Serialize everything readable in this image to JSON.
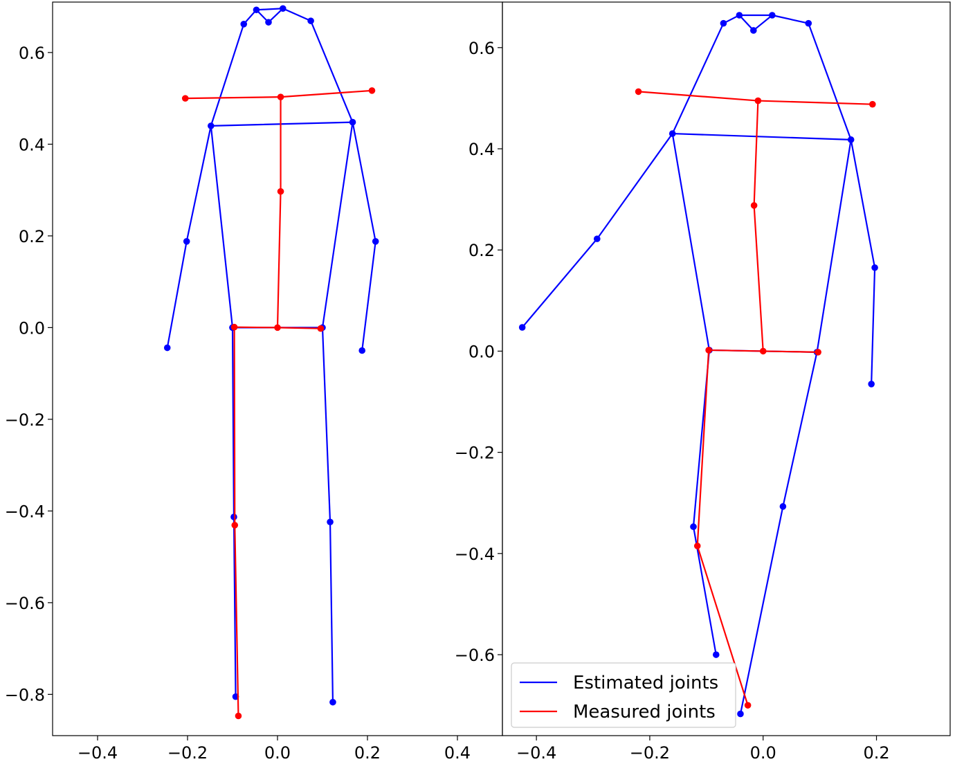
{
  "chart_data": [
    {
      "type": "line",
      "xlim": [
        -0.5,
        0.5
      ],
      "ylim": [
        -0.89,
        0.71
      ],
      "xticks": [
        -0.4,
        -0.2,
        0.0,
        0.2,
        0.4
      ],
      "xtick_labels": [
        "−0.4",
        "−0.2",
        "0.0",
        "0.2",
        "0.4"
      ],
      "yticks": [
        -0.8,
        -0.6,
        -0.4,
        -0.2,
        0.0,
        0.2,
        0.4,
        0.6
      ],
      "ytick_labels": [
        "−0.8",
        "−0.6",
        "−0.4",
        "−0.2",
        "0.0",
        "0.2",
        "0.4",
        "0.6"
      ],
      "grid": false,
      "series": [
        {
          "name": "Estimated joints",
          "color": "#0000ff",
          "points": {
            "pelvis": [
              -0.1,
              0.0
            ],
            "rhip": [
              -0.1,
              0.0
            ],
            "rknee": [
              -0.097,
              -0.413
            ],
            "rankle": [
              -0.093,
              -0.805
            ],
            "lhip": [
              0.1,
              0.0
            ],
            "lknee": [
              0.117,
              -0.424
            ],
            "lankle": [
              0.123,
              -0.817
            ],
            "rshoulder": [
              -0.148,
              0.44
            ],
            "relbow": [
              -0.202,
              0.188
            ],
            "rwrist": [
              -0.245,
              -0.044
            ],
            "lshoulder": [
              0.167,
              0.448
            ],
            "lelbow": [
              0.218,
              0.188
            ],
            "lwrist": [
              0.188,
              -0.05
            ],
            "rear": [
              -0.075,
              0.662
            ],
            "reye": [
              -0.047,
              0.693
            ],
            "nose": [
              -0.02,
              0.666
            ],
            "leye": [
              0.012,
              0.696
            ],
            "lear": [
              0.074,
              0.669
            ]
          },
          "segments": [
            [
              "rknee",
              "rankle"
            ],
            [
              "rhip",
              "rknee"
            ],
            [
              "rhip",
              "lhip"
            ],
            [
              "lhip",
              "lknee"
            ],
            [
              "lknee",
              "lankle"
            ],
            [
              "rhip",
              "rshoulder"
            ],
            [
              "lhip",
              "lshoulder"
            ],
            [
              "rshoulder",
              "lshoulder"
            ],
            [
              "rshoulder",
              "relbow"
            ],
            [
              "relbow",
              "rwrist"
            ],
            [
              "lshoulder",
              "lelbow"
            ],
            [
              "lelbow",
              "lwrist"
            ],
            [
              "rshoulder",
              "rear"
            ],
            [
              "rear",
              "reye"
            ],
            [
              "reye",
              "nose"
            ],
            [
              "nose",
              "leye"
            ],
            [
              "reye",
              "leye"
            ],
            [
              "leye",
              "lear"
            ],
            [
              "lear",
              "lshoulder"
            ]
          ]
        },
        {
          "name": "Measured joints",
          "color": "#ff0000",
          "points": {
            "pelvis": [
              0.0,
              0.0
            ],
            "rhip": [
              -0.096,
              0.001
            ],
            "rknee": [
              -0.095,
              -0.431
            ],
            "rankle": [
              -0.087,
              -0.847
            ],
            "lhip": [
              0.096,
              -0.002
            ],
            "spine": [
              0.007,
              0.297
            ],
            "neck": [
              0.007,
              0.503
            ],
            "rshoulder": [
              -0.205,
              0.5
            ],
            "lshoulder": [
              0.21,
              0.517
            ]
          },
          "segments": [
            [
              "rhip",
              "pelvis"
            ],
            [
              "pelvis",
              "lhip"
            ],
            [
              "pelvis",
              "spine"
            ],
            [
              "spine",
              "neck"
            ],
            [
              "rshoulder",
              "neck"
            ],
            [
              "neck",
              "lshoulder"
            ],
            [
              "rhip",
              "rknee"
            ],
            [
              "rknee",
              "rankle"
            ]
          ]
        }
      ]
    },
    {
      "type": "line",
      "xlim": [
        -0.46,
        0.33
      ],
      "ylim": [
        -0.76,
        0.69
      ],
      "xticks": [
        -0.4,
        -0.2,
        0.0,
        0.2
      ],
      "xtick_labels": [
        "−0.4",
        "−0.2",
        "0.0",
        "0.2"
      ],
      "yticks": [
        -0.6,
        -0.4,
        -0.2,
        0.0,
        0.2,
        0.4,
        0.6
      ],
      "ytick_labels": [
        "−0.6",
        "−0.4",
        "−0.2",
        "0.0",
        "0.2",
        "0.4",
        "0.6"
      ],
      "grid": false,
      "legend": {
        "position": "lower-left",
        "entries": [
          {
            "label": "Estimated joints",
            "color": "#0000ff"
          },
          {
            "label": "Measured joints",
            "color": "#ff0000"
          }
        ]
      },
      "series": [
        {
          "name": "Estimated joints",
          "color": "#0000ff",
          "points": {
            "pelvis": [
              -0.095,
              0.002
            ],
            "rhip": [
              -0.095,
              0.002
            ],
            "rknee": [
              -0.123,
              -0.347
            ],
            "rankle": [
              -0.083,
              -0.6
            ],
            "lhip": [
              0.095,
              -0.002
            ],
            "lknee": [
              0.035,
              -0.307
            ],
            "lankle": [
              -0.04,
              -0.717
            ],
            "rshoulder": [
              -0.16,
              0.43
            ],
            "relbow": [
              -0.293,
              0.222
            ],
            "rwrist": [
              -0.425,
              0.047
            ],
            "lshoulder": [
              0.155,
              0.418
            ],
            "lelbow": [
              0.197,
              0.165
            ],
            "lwrist": [
              0.191,
              -0.065
            ],
            "rear": [
              -0.07,
              0.648
            ],
            "reye": [
              -0.042,
              0.664
            ],
            "nose": [
              -0.017,
              0.634
            ],
            "leye": [
              0.016,
              0.664
            ],
            "lear": [
              0.08,
              0.648
            ]
          },
          "segments": [
            [
              "rhip",
              "rknee"
            ],
            [
              "rknee",
              "rankle"
            ],
            [
              "rhip",
              "lhip"
            ],
            [
              "lhip",
              "lknee"
            ],
            [
              "lknee",
              "lankle"
            ],
            [
              "rhip",
              "rshoulder"
            ],
            [
              "lhip",
              "lshoulder"
            ],
            [
              "rshoulder",
              "lshoulder"
            ],
            [
              "rshoulder",
              "relbow"
            ],
            [
              "relbow",
              "rwrist"
            ],
            [
              "lshoulder",
              "lelbow"
            ],
            [
              "lelbow",
              "lwrist"
            ],
            [
              "rshoulder",
              "rear"
            ],
            [
              "rear",
              "reye"
            ],
            [
              "reye",
              "nose"
            ],
            [
              "nose",
              "leye"
            ],
            [
              "reye",
              "leye"
            ],
            [
              "leye",
              "lear"
            ],
            [
              "lear",
              "lshoulder"
            ]
          ]
        },
        {
          "name": "Measured joints",
          "color": "#ff0000",
          "points": {
            "pelvis": [
              0.0,
              0.0
            ],
            "rhip": [
              -0.096,
              0.002
            ],
            "rknee": [
              -0.116,
              -0.385
            ],
            "rankle": [
              -0.027,
              -0.7
            ],
            "lhip": [
              0.097,
              -0.002
            ],
            "spine": [
              -0.016,
              0.288
            ],
            "neck": [
              -0.009,
              0.495
            ],
            "rshoulder": [
              -0.22,
              0.513
            ],
            "lshoulder": [
              0.193,
              0.488
            ]
          },
          "segments": [
            [
              "rhip",
              "pelvis"
            ],
            [
              "pelvis",
              "lhip"
            ],
            [
              "pelvis",
              "spine"
            ],
            [
              "spine",
              "neck"
            ],
            [
              "rshoulder",
              "neck"
            ],
            [
              "neck",
              "lshoulder"
            ],
            [
              "rhip",
              "rknee"
            ],
            [
              "rknee",
              "rankle"
            ]
          ]
        }
      ]
    }
  ]
}
